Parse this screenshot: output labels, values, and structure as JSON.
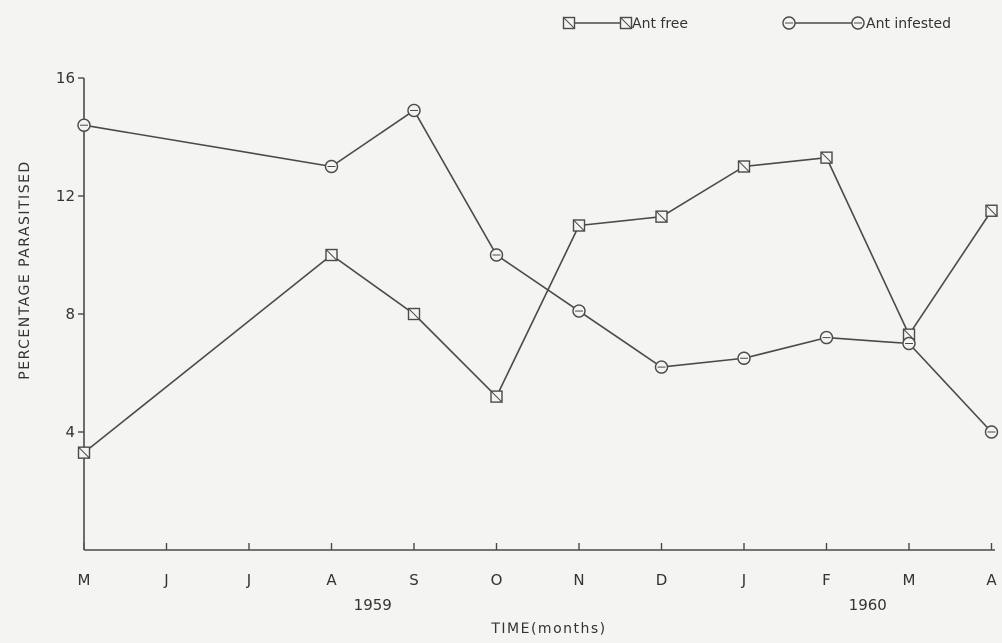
{
  "chart_data": {
    "type": "line",
    "xlabel": "TIME(months)",
    "ylabel": "PERCENTAGE PARASITISED",
    "categories": [
      "M",
      "J",
      "J",
      "A",
      "S",
      "O",
      "N",
      "D",
      "J",
      "F",
      "M",
      "A"
    ],
    "year_labels": [
      {
        "text": "1959",
        "category_index": 3.5
      },
      {
        "text": "1960",
        "category_index": 9.5
      }
    ],
    "yticks": [
      4,
      8,
      12,
      16
    ],
    "ylim": [
      0,
      16
    ],
    "series": [
      {
        "name": "Ant free",
        "marker": "square",
        "x": [
          0,
          3,
          4,
          5,
          6,
          7,
          8,
          9,
          10,
          11
        ],
        "values": [
          3.3,
          10.0,
          8.0,
          5.2,
          11.0,
          11.3,
          13.0,
          13.3,
          7.3,
          11.5
        ]
      },
      {
        "name": "Ant infested",
        "marker": "circle",
        "x": [
          0,
          3,
          4,
          5,
          6,
          7,
          8,
          9,
          10,
          11
        ],
        "values": [
          14.4,
          13.0,
          14.9,
          10.0,
          8.1,
          6.2,
          6.5,
          7.2,
          7.0,
          4.0
        ]
      }
    ],
    "legend_position": "top-right",
    "grid": false
  }
}
